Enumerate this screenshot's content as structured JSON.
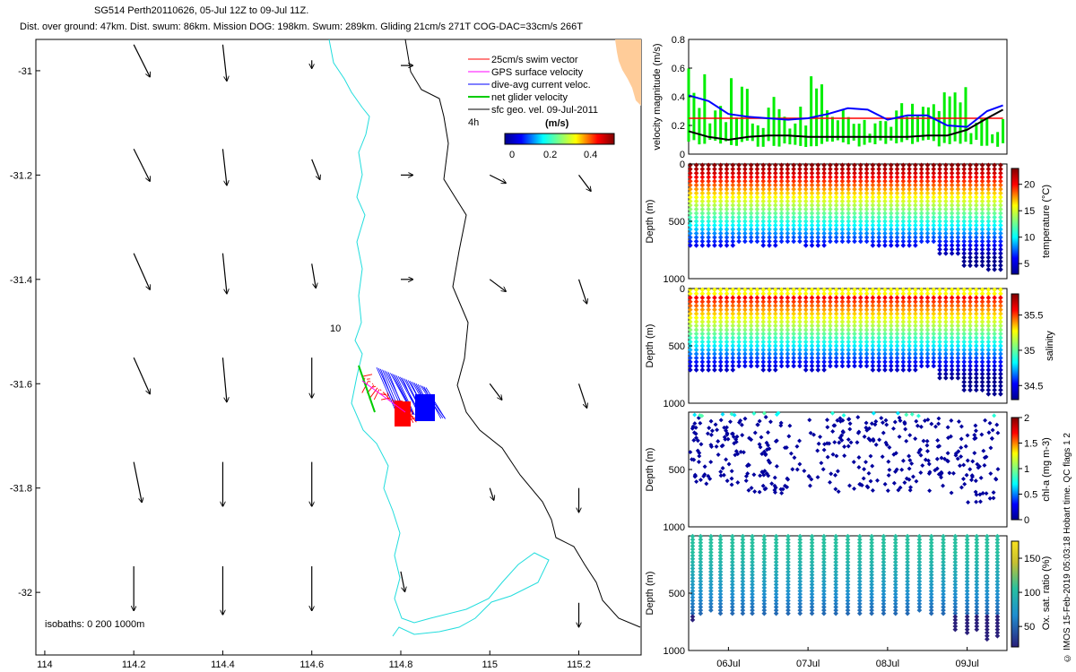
{
  "header": {
    "title_line1": "SG514 Perth20110626, 05-Jul 12Z to 09-Jul 11Z.",
    "title_line2": "Dist. over ground: 47km. Dist. swum: 86km. Mission DOG: 198km. Swum: 289km. Gliding 21cm/s 271T COG-DAC=33cm/s 266T"
  },
  "side_note": "© IMOS 15-Feb-2019 05:03:18 Hobart time. QC flags 1  2",
  "colors": {
    "swim": "#ff0000",
    "gps": "#ff00ff",
    "dac": "#0000ff",
    "net": "#00cc00",
    "geo": "#000000",
    "isobath_shallow": "#22dddd",
    "isobath_deep": "#000000",
    "land": "#ffcc99"
  },
  "chart_data": [
    {
      "id": "map",
      "type": "scatter",
      "x_ticks": [
        "114",
        "114.2",
        "114.4",
        "114.6",
        "114.8",
        "115",
        "115.2"
      ],
      "y_ticks": [
        "-31",
        "-31.2",
        "-31.4",
        "-31.6",
        "-31.8",
        "-32"
      ],
      "xlim": [
        113.98,
        115.34
      ],
      "ylim": [
        -32.12,
        -30.94
      ],
      "legend": {
        "items": [
          "25cm/s swim vector",
          "GPS surface velocity",
          "dive-avg current veloc.",
          "net glider velocity",
          "sfc geo. vel. 09-Jul-2011"
        ],
        "time_label": "4h",
        "colorbar_unit": "(m/s)",
        "colorbar_ticks": [
          "0",
          "0.2",
          "0.4"
        ]
      },
      "isobath_label": "isobaths: 0   200  1000m",
      "depth_label": "10",
      "geo_vectors": [
        {
          "lon": 114.2,
          "lat": -30.95,
          "u": 0.4,
          "v": -0.8
        },
        {
          "lon": 114.4,
          "lat": -30.95,
          "u": 0.1,
          "v": -0.9
        },
        {
          "lon": 114.6,
          "lat": -30.98,
          "u": 0.0,
          "v": -0.2
        },
        {
          "lon": 114.8,
          "lat": -30.99,
          "u": 0.3,
          "v": 0.0
        },
        {
          "lon": 114.2,
          "lat": -31.15,
          "u": 0.4,
          "v": -0.8
        },
        {
          "lon": 114.4,
          "lat": -31.15,
          "u": 0.1,
          "v": -0.9
        },
        {
          "lon": 114.6,
          "lat": -31.17,
          "u": 0.2,
          "v": -0.5
        },
        {
          "lon": 114.8,
          "lat": -31.2,
          "u": 0.3,
          "v": 0.0
        },
        {
          "lon": 115.0,
          "lat": -31.2,
          "u": 0.4,
          "v": -0.2
        },
        {
          "lon": 115.2,
          "lat": -31.2,
          "u": 0.3,
          "v": -0.4
        },
        {
          "lon": 114.2,
          "lat": -31.35,
          "u": 0.4,
          "v": -0.9
        },
        {
          "lon": 114.4,
          "lat": -31.35,
          "u": 0.1,
          "v": -1.0
        },
        {
          "lon": 114.6,
          "lat": -31.37,
          "u": 0.1,
          "v": -0.6
        },
        {
          "lon": 114.8,
          "lat": -31.4,
          "u": 0.3,
          "v": 0.0
        },
        {
          "lon": 115.0,
          "lat": -31.4,
          "u": 0.4,
          "v": -0.3
        },
        {
          "lon": 115.2,
          "lat": -31.4,
          "u": 0.2,
          "v": -0.6
        },
        {
          "lon": 114.2,
          "lat": -31.55,
          "u": 0.4,
          "v": -0.9
        },
        {
          "lon": 114.4,
          "lat": -31.55,
          "u": 0.1,
          "v": -1.1
        },
        {
          "lon": 114.6,
          "lat": -31.55,
          "u": 0.0,
          "v": -1.0
        },
        {
          "lon": 115.0,
          "lat": -31.6,
          "u": 0.3,
          "v": -0.4
        },
        {
          "lon": 115.2,
          "lat": -31.6,
          "u": 0.2,
          "v": -0.6
        },
        {
          "lon": 114.2,
          "lat": -31.75,
          "u": 0.2,
          "v": -1.0
        },
        {
          "lon": 114.4,
          "lat": -31.75,
          "u": 0.0,
          "v": -1.1
        },
        {
          "lon": 114.6,
          "lat": -31.75,
          "u": 0.0,
          "v": -1.1
        },
        {
          "lon": 115.0,
          "lat": -31.8,
          "u": 0.1,
          "v": -0.3
        },
        {
          "lon": 115.2,
          "lat": -31.8,
          "u": 0.0,
          "v": -0.6
        },
        {
          "lon": 114.2,
          "lat": -31.95,
          "u": 0.0,
          "v": -1.1
        },
        {
          "lon": 114.4,
          "lat": -31.95,
          "u": 0.0,
          "v": -1.2
        },
        {
          "lon": 114.6,
          "lat": -31.95,
          "u": 0.0,
          "v": -1.1
        },
        {
          "lon": 114.8,
          "lat": -31.96,
          "u": 0.1,
          "v": -0.5
        },
        {
          "lon": 115.2,
          "lat": -32.02,
          "u": 0.0,
          "v": -0.6
        }
      ]
    },
    {
      "id": "velocity",
      "type": "line",
      "ylabel": "velocity magnitude (m/s)",
      "y_ticks": [
        "0",
        "0.2",
        "0.4",
        "0.6",
        "0.8"
      ],
      "ylim": [
        0,
        0.8
      ],
      "x": [
        0,
        0.25,
        0.5,
        0.75,
        1.0,
        1.25,
        1.5,
        1.75,
        2.0,
        2.25,
        2.5,
        2.75,
        3.0,
        3.25,
        3.5,
        3.75,
        3.95
      ],
      "series": [
        {
          "values": [
            0.25,
            0.25,
            0.25,
            0.25,
            0.25,
            0.25,
            0.25,
            0.25,
            0.25,
            0.25,
            0.25,
            0.25,
            0.25,
            0.25,
            0.25,
            0.25,
            0.25
          ]
        },
        {
          "values": [
            0.41,
            0.37,
            0.28,
            0.26,
            0.25,
            0.24,
            0.25,
            0.28,
            0.32,
            0.31,
            0.24,
            0.27,
            0.27,
            0.2,
            0.19,
            0.3,
            0.34
          ]
        },
        {
          "values": [
            0.16,
            0.12,
            0.1,
            0.12,
            0.13,
            0.13,
            0.12,
            0.12,
            0.12,
            0.12,
            0.12,
            0.12,
            0.13,
            0.13,
            0.17,
            0.25,
            0.31
          ]
        },
        {
          "values": [
            0.58,
            0.35,
            0.45,
            0.3,
            0.35,
            0.3,
            0.55,
            0.3,
            0.35,
            0.25,
            0.3,
            0.3,
            0.35,
            0.4,
            0.25,
            0.2,
            0.38
          ]
        }
      ]
    },
    {
      "id": "temperature",
      "type": "heatmap",
      "ylabel": "Depth (m)",
      "y_ticks": [
        "0",
        "500",
        "1000"
      ],
      "ylim": [
        0,
        1000
      ],
      "colorbar_label": "temperature (°C)",
      "colorbar_ticks": [
        "5",
        "10",
        "15",
        "20"
      ],
      "clim": [
        3,
        23
      ],
      "profile_max_depth": [
        720,
        740,
        700,
        720,
        700,
        720,
        700,
        700,
        720,
        740,
        700,
        800,
        900,
        920
      ]
    },
    {
      "id": "salinity",
      "type": "heatmap",
      "ylabel": "Depth (m)",
      "y_ticks": [
        "0",
        "500",
        "1000"
      ],
      "ylim": [
        0,
        1000
      ],
      "colorbar_label": "salinity",
      "colorbar_ticks": [
        "34.5",
        "35",
        "35.5"
      ],
      "clim": [
        34.3,
        35.8
      ],
      "profile_max_depth": [
        720,
        740,
        700,
        720,
        700,
        720,
        700,
        700,
        720,
        740,
        700,
        800,
        900,
        920
      ]
    },
    {
      "id": "chla",
      "type": "scatter",
      "ylabel": "Depth (m)",
      "y_ticks": [
        "500",
        "1000"
      ],
      "ylim": [
        0,
        1000
      ],
      "colorbar_label": "chl-a (mg m-3)",
      "colorbar_ticks": [
        "0",
        "0.5",
        "1",
        "1.5",
        "2"
      ],
      "clim": [
        0,
        2
      ]
    },
    {
      "id": "oxygen",
      "type": "scatter",
      "ylabel": "Depth (m)",
      "y_ticks": [
        "500",
        "1000"
      ],
      "ylim": [
        0,
        1000
      ],
      "colorbar_label": "Ox. sat. ratio (%)",
      "colorbar_ticks": [
        "50",
        "100",
        "150"
      ],
      "clim": [
        20,
        175
      ],
      "x_ticks": [
        "06Jul",
        "07Jul",
        "08Jul",
        "09Jul"
      ],
      "profile_x": [
        0.05,
        0.15,
        0.28,
        0.4,
        0.55,
        0.68,
        0.8,
        0.95,
        1.1,
        1.25,
        1.4,
        1.55,
        1.7,
        1.85,
        2.0,
        2.15,
        2.3,
        2.45,
        2.6,
        2.75,
        2.9,
        3.05,
        3.2,
        3.35,
        3.5,
        3.62,
        3.75,
        3.88
      ],
      "profile_max_depth": [
        740,
        700,
        650,
        690,
        690,
        680,
        680,
        680,
        700,
        700,
        680,
        680,
        690,
        700,
        700,
        680,
        680,
        700,
        690,
        700,
        660,
        700,
        700,
        830,
        850,
        840,
        920,
        900
      ]
    }
  ]
}
